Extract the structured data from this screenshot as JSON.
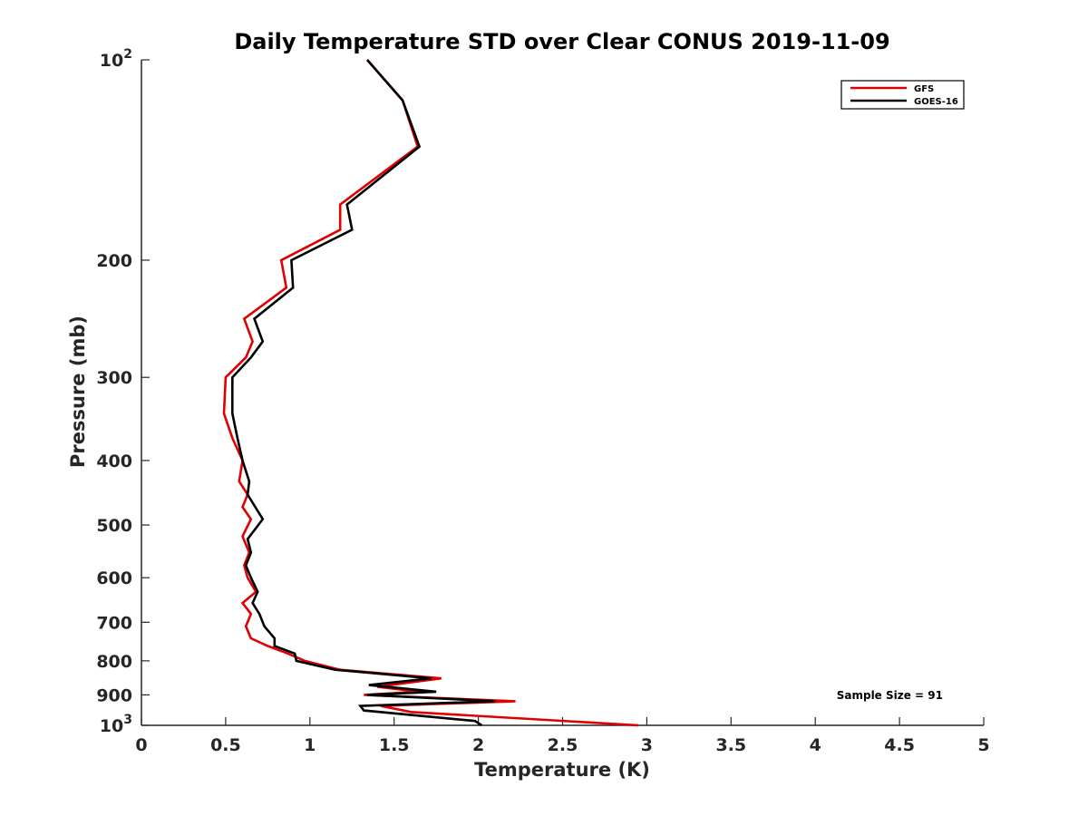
{
  "chart_data": {
    "type": "line",
    "title": "Daily Temperature STD over Clear CONUS 2019-11-09",
    "xlabel": "Temperature (K)",
    "ylabel": "Pressure (mb)",
    "xlim": [
      0,
      5
    ],
    "ylim": [
      100,
      1000
    ],
    "y_scale": "log",
    "y_inverted": true,
    "grid": false,
    "legend_position": "top-right",
    "x_ticks": [
      {
        "value": 0,
        "label": "0"
      },
      {
        "value": 0.5,
        "label": "0.5"
      },
      {
        "value": 1,
        "label": "1"
      },
      {
        "value": 1.5,
        "label": "1.5"
      },
      {
        "value": 2,
        "label": "2"
      },
      {
        "value": 2.5,
        "label": "2.5"
      },
      {
        "value": 3,
        "label": "3"
      },
      {
        "value": 3.5,
        "label": "3.5"
      },
      {
        "value": 4,
        "label": "4"
      },
      {
        "value": 4.5,
        "label": "4.5"
      },
      {
        "value": 5,
        "label": "5"
      }
    ],
    "y_ticks": [
      {
        "value": 100,
        "label": "10",
        "sup": "2"
      },
      {
        "value": 200,
        "label": "200"
      },
      {
        "value": 300,
        "label": "300"
      },
      {
        "value": 400,
        "label": "400"
      },
      {
        "value": 500,
        "label": "500"
      },
      {
        "value": 600,
        "label": "600"
      },
      {
        "value": 700,
        "label": "700"
      },
      {
        "value": 800,
        "label": "800"
      },
      {
        "value": 900,
        "label": "900"
      },
      {
        "value": 1000,
        "label": "10",
        "sup": "3"
      }
    ],
    "annotation": "Sample Size = 91",
    "series": [
      {
        "name": "GFS",
        "color": "#e00000",
        "points": [
          [
            1.34,
            100
          ],
          [
            1.55,
            115
          ],
          [
            1.64,
            135
          ],
          [
            1.18,
            165
          ],
          [
            1.18,
            180
          ],
          [
            0.83,
            200
          ],
          [
            0.86,
            220
          ],
          [
            0.61,
            245
          ],
          [
            0.66,
            265
          ],
          [
            0.62,
            280
          ],
          [
            0.5,
            300
          ],
          [
            0.49,
            340
          ],
          [
            0.54,
            370
          ],
          [
            0.6,
            400
          ],
          [
            0.58,
            430
          ],
          [
            0.63,
            450
          ],
          [
            0.6,
            470
          ],
          [
            0.65,
            490
          ],
          [
            0.6,
            520
          ],
          [
            0.64,
            550
          ],
          [
            0.61,
            575
          ],
          [
            0.63,
            600
          ],
          [
            0.68,
            630
          ],
          [
            0.6,
            655
          ],
          [
            0.65,
            680
          ],
          [
            0.62,
            710
          ],
          [
            0.65,
            740
          ],
          [
            0.75,
            760
          ],
          [
            0.87,
            780
          ],
          [
            0.97,
            800
          ],
          [
            1.18,
            825
          ],
          [
            1.78,
            850
          ],
          [
            1.4,
            875
          ],
          [
            1.65,
            890
          ],
          [
            1.32,
            900
          ],
          [
            2.22,
            920
          ],
          [
            1.42,
            935
          ],
          [
            1.6,
            955
          ],
          [
            2.95,
            1000
          ]
        ]
      },
      {
        "name": "GOES-16",
        "color": "#000000",
        "points": [
          [
            1.34,
            100
          ],
          [
            1.55,
            115
          ],
          [
            1.65,
            135
          ],
          [
            1.22,
            165
          ],
          [
            1.25,
            180
          ],
          [
            0.89,
            200
          ],
          [
            0.9,
            220
          ],
          [
            0.67,
            245
          ],
          [
            0.72,
            265
          ],
          [
            0.65,
            280
          ],
          [
            0.54,
            300
          ],
          [
            0.54,
            340
          ],
          [
            0.57,
            370
          ],
          [
            0.6,
            400
          ],
          [
            0.64,
            430
          ],
          [
            0.63,
            450
          ],
          [
            0.72,
            490
          ],
          [
            0.63,
            525
          ],
          [
            0.65,
            550
          ],
          [
            0.62,
            575
          ],
          [
            0.65,
            600
          ],
          [
            0.69,
            630
          ],
          [
            0.66,
            655
          ],
          [
            0.7,
            680
          ],
          [
            0.73,
            710
          ],
          [
            0.79,
            740
          ],
          [
            0.79,
            760
          ],
          [
            0.91,
            780
          ],
          [
            0.92,
            800
          ],
          [
            1.15,
            825
          ],
          [
            1.72,
            850
          ],
          [
            1.35,
            870
          ],
          [
            1.75,
            890
          ],
          [
            1.34,
            900
          ],
          [
            2.1,
            920
          ],
          [
            1.3,
            935
          ],
          [
            1.32,
            950
          ],
          [
            1.98,
            985
          ],
          [
            2.02,
            1000
          ]
        ]
      }
    ]
  }
}
